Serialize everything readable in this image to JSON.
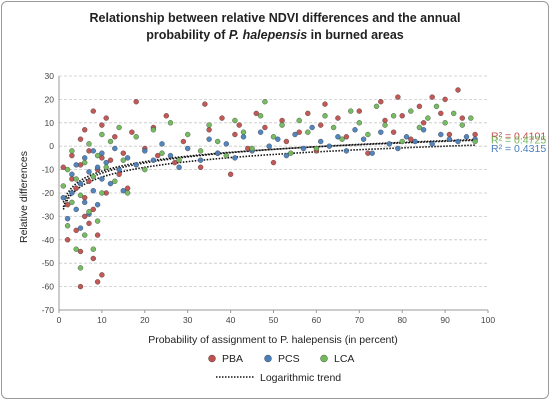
{
  "title": {
    "line1": "Relationship between relative NDVI differences and the annual",
    "line2_pre": "probability of ",
    "line2_ital": "P. halepensis",
    "line2_post": " in burned areas"
  },
  "chart_data": {
    "type": "scatter",
    "title": "Relationship between relative NDVI differences and the annual probability of P. halepensis in burned areas",
    "xlabel": "Probability of assignment to P. halepensis (in percent)",
    "ylabel": "Relative differences",
    "xlim": [
      0,
      100
    ],
    "ylim": [
      -70,
      30
    ],
    "xticks": [
      0,
      10,
      20,
      30,
      40,
      50,
      60,
      70,
      80,
      90,
      100
    ],
    "yticks": [
      -70,
      -60,
      -50,
      -40,
      -30,
      -20,
      -10,
      0,
      10,
      20,
      30
    ],
    "grid": "horizontal dashed",
    "legend_position": "bottom",
    "series": [
      {
        "name": "PBA",
        "color": "#c0504d",
        "r2": "R² = 0.4101",
        "trend": {
          "type": "logarithmic",
          "a": 5.8,
          "b": -24.0
        },
        "points": [
          [
            1,
            -9
          ],
          [
            2,
            -25
          ],
          [
            2,
            -40
          ],
          [
            3,
            -14
          ],
          [
            3,
            -4
          ],
          [
            4,
            -36
          ],
          [
            4,
            -18
          ],
          [
            5,
            -60
          ],
          [
            5,
            -45
          ],
          [
            5,
            -8
          ],
          [
            5,
            3
          ],
          [
            6,
            -30
          ],
          [
            6,
            -22
          ],
          [
            6,
            7
          ],
          [
            7,
            -15
          ],
          [
            7,
            -33
          ],
          [
            7,
            -2
          ],
          [
            8,
            -48
          ],
          [
            8,
            -27
          ],
          [
            8,
            15
          ],
          [
            9,
            -58
          ],
          [
            9,
            -10
          ],
          [
            9,
            -38
          ],
          [
            10,
            -55
          ],
          [
            10,
            -5
          ],
          [
            10,
            9
          ],
          [
            11,
            -20
          ],
          [
            11,
            12
          ],
          [
            12,
            -6
          ],
          [
            13,
            4
          ],
          [
            14,
            -12
          ],
          [
            15,
            -3
          ],
          [
            16,
            -18
          ],
          [
            17,
            6
          ],
          [
            18,
            19
          ],
          [
            20,
            -1
          ],
          [
            22,
            8
          ],
          [
            23,
            -4
          ],
          [
            25,
            13
          ],
          [
            27,
            -7
          ],
          [
            29,
            2
          ],
          [
            33,
            -9
          ],
          [
            34,
            18
          ],
          [
            35,
            7
          ],
          [
            37,
            -3
          ],
          [
            38,
            12
          ],
          [
            40,
            -12
          ],
          [
            41,
            5
          ],
          [
            42,
            9
          ],
          [
            44,
            -1
          ],
          [
            46,
            14
          ],
          [
            48,
            8
          ],
          [
            50,
            -7
          ],
          [
            52,
            11
          ],
          [
            53,
            2
          ],
          [
            56,
            6
          ],
          [
            58,
            14
          ],
          [
            60,
            -2
          ],
          [
            61,
            9
          ],
          [
            62,
            18
          ],
          [
            65,
            12
          ],
          [
            67,
            4
          ],
          [
            70,
            15
          ],
          [
            72,
            -3
          ],
          [
            75,
            19
          ],
          [
            76,
            11
          ],
          [
            78,
            6
          ],
          [
            79,
            21
          ],
          [
            80,
            13
          ],
          [
            82,
            3
          ],
          [
            84,
            17
          ],
          [
            85,
            10
          ],
          [
            87,
            21
          ],
          [
            89,
            14
          ],
          [
            90,
            20
          ],
          [
            91,
            5
          ],
          [
            93,
            24
          ],
          [
            94,
            12
          ],
          [
            97,
            5
          ]
        ]
      },
      {
        "name": "PCS",
        "color": "#4a7ebb",
        "r2": "R² = 0.4315",
        "trend": {
          "type": "logarithmic",
          "a": 6.0,
          "b": -27.0
        },
        "points": [
          [
            1,
            -22
          ],
          [
            2,
            -31
          ],
          [
            3,
            -20
          ],
          [
            3,
            -12
          ],
          [
            4,
            -27
          ],
          [
            4,
            -8
          ],
          [
            5,
            -35
          ],
          [
            5,
            -16
          ],
          [
            6,
            -24
          ],
          [
            6,
            -5
          ],
          [
            7,
            -29
          ],
          [
            7,
            -11
          ],
          [
            8,
            -19
          ],
          [
            8,
            -2
          ],
          [
            9,
            -25
          ],
          [
            9,
            -9
          ],
          [
            10,
            -14
          ],
          [
            10,
            -3
          ],
          [
            11,
            -7
          ],
          [
            12,
            -16
          ],
          [
            13,
            -1
          ],
          [
            14,
            -10
          ],
          [
            15,
            -19
          ],
          [
            16,
            -5
          ],
          [
            18,
            -8
          ],
          [
            20,
            -2
          ],
          [
            22,
            -6
          ],
          [
            24,
            1
          ],
          [
            26,
            -4
          ],
          [
            28,
            -9
          ],
          [
            30,
            -1
          ],
          [
            33,
            -6
          ],
          [
            35,
            3
          ],
          [
            37,
            -3
          ],
          [
            39,
            1
          ],
          [
            41,
            -5
          ],
          [
            43,
            4
          ],
          [
            45,
            -2
          ],
          [
            47,
            6
          ],
          [
            49,
            0
          ],
          [
            51,
            3
          ],
          [
            53,
            -4
          ],
          [
            55,
            5
          ],
          [
            57,
            -1
          ],
          [
            59,
            8
          ],
          [
            61,
            2
          ],
          [
            63,
            0
          ],
          [
            65,
            4
          ],
          [
            67,
            -2
          ],
          [
            69,
            7
          ],
          [
            71,
            3
          ],
          [
            73,
            -3
          ],
          [
            75,
            6
          ],
          [
            77,
            1
          ],
          [
            79,
            -1
          ],
          [
            81,
            4
          ],
          [
            83,
            2
          ],
          [
            85,
            7
          ],
          [
            87,
            1
          ],
          [
            89,
            5
          ],
          [
            91,
            3
          ],
          [
            93,
            2
          ],
          [
            95,
            4
          ],
          [
            97,
            3
          ]
        ]
      },
      {
        "name": "LCA",
        "color": "#70b85a",
        "r2": "R² = 0.4725",
        "trend": {
          "type": "logarithmic",
          "a": 6.3,
          "b": -26.0
        },
        "points": [
          [
            1,
            -17
          ],
          [
            2,
            -34
          ],
          [
            2,
            -10
          ],
          [
            3,
            -24
          ],
          [
            3,
            -2
          ],
          [
            4,
            -44
          ],
          [
            4,
            -14
          ],
          [
            5,
            -52
          ],
          [
            5,
            -21
          ],
          [
            6,
            -38
          ],
          [
            6,
            -7
          ],
          [
            7,
            -28
          ],
          [
            7,
            1
          ],
          [
            8,
            -44
          ],
          [
            8,
            -13
          ],
          [
            9,
            -32
          ],
          [
            9,
            -4
          ],
          [
            10,
            -20
          ],
          [
            10,
            5
          ],
          [
            11,
            -9
          ],
          [
            12,
            2
          ],
          [
            13,
            -15
          ],
          [
            14,
            8
          ],
          [
            15,
            -6
          ],
          [
            16,
            -20
          ],
          [
            18,
            4
          ],
          [
            20,
            -10
          ],
          [
            22,
            7
          ],
          [
            24,
            -3
          ],
          [
            26,
            10
          ],
          [
            28,
            -6
          ],
          [
            30,
            5
          ],
          [
            33,
            -2
          ],
          [
            35,
            9
          ],
          [
            37,
            2
          ],
          [
            39,
            -4
          ],
          [
            41,
            11
          ],
          [
            43,
            6
          ],
          [
            45,
            -1
          ],
          [
            47,
            13
          ],
          [
            48,
            19
          ],
          [
            50,
            4
          ],
          [
            52,
            9
          ],
          [
            54,
            -3
          ],
          [
            56,
            11
          ],
          [
            58,
            6
          ],
          [
            60,
            -1
          ],
          [
            62,
            13
          ],
          [
            64,
            8
          ],
          [
            66,
            3
          ],
          [
            68,
            15
          ],
          [
            70,
            10
          ],
          [
            72,
            5
          ],
          [
            74,
            17
          ],
          [
            76,
            9
          ],
          [
            78,
            13
          ],
          [
            80,
            2
          ],
          [
            82,
            15
          ],
          [
            84,
            8
          ],
          [
            86,
            12
          ],
          [
            88,
            17
          ],
          [
            90,
            10
          ],
          [
            92,
            14
          ],
          [
            94,
            9
          ],
          [
            96,
            12
          ],
          [
            97,
            2
          ]
        ]
      }
    ]
  },
  "legend": {
    "items": [
      {
        "label": "PBA",
        "color": "#c0504d"
      },
      {
        "label": "PCS",
        "color": "#4a7ebb"
      },
      {
        "label": "LCA",
        "color": "#70b85a"
      }
    ],
    "trend_label": "Logarithmic trend"
  }
}
